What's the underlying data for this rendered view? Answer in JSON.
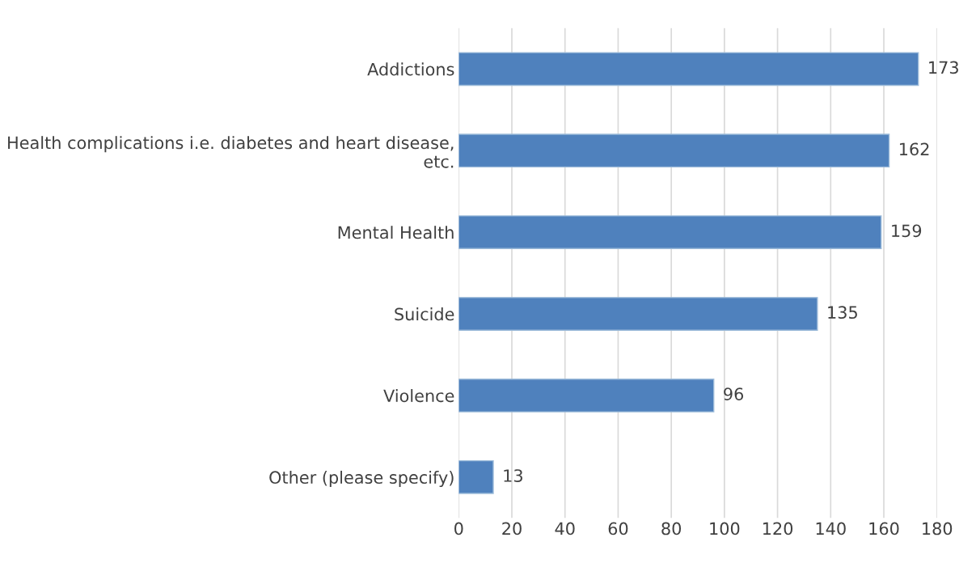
{
  "chart_data": {
    "type": "bar",
    "orientation": "horizontal",
    "categories": [
      "Addictions",
      "Health complications i.e. diabetes and heart disease, etc.",
      "Mental Health",
      "Suicide",
      "Violence",
      "Other (please specify)"
    ],
    "values": [
      173,
      162,
      159,
      135,
      96,
      13
    ],
    "color": "#4f81bd",
    "xlim": [
      0,
      180
    ],
    "xticks": [
      0,
      20,
      40,
      60,
      80,
      100,
      120,
      140,
      160,
      180
    ],
    "grid": "x",
    "data_labels": true
  }
}
